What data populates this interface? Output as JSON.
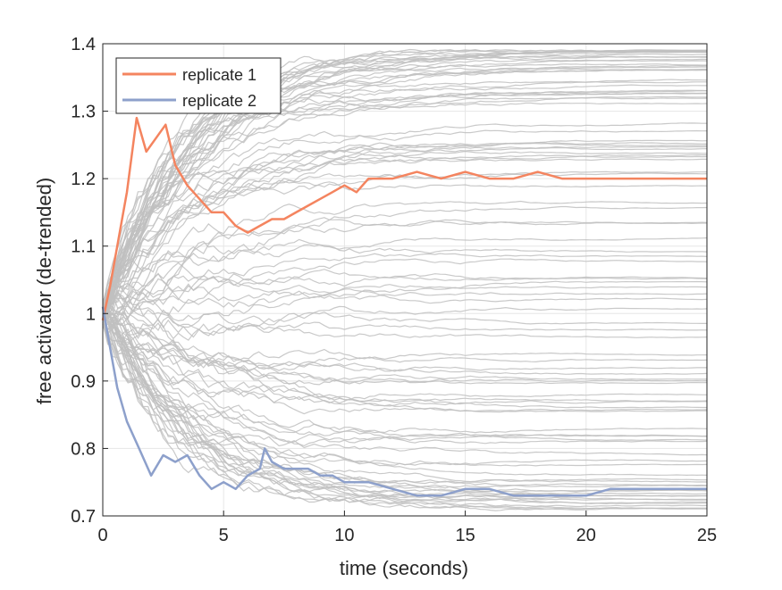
{
  "chart_data": {
    "type": "line",
    "title": "",
    "xlabel": "time (seconds)",
    "ylabel": "free activator (de-trended)",
    "xlim": [
      0,
      25
    ],
    "ylim": [
      0.7,
      1.4
    ],
    "xticks": [
      "0",
      "5",
      "10",
      "15",
      "20",
      "25"
    ],
    "yticks": [
      "0.7",
      "0.8",
      "0.9",
      "1",
      "1.1",
      "1.2",
      "1.3",
      "1.4"
    ],
    "grid": true,
    "legend_position": "top-left",
    "background_traces": {
      "color": "#bfbfbf",
      "count": 100,
      "start_value": 1.0,
      "final_range": [
        0.71,
        1.39
      ],
      "description_values": [
        1.38,
        1.31,
        1.28,
        1.24,
        1.18,
        1.11,
        1.06,
        1.03,
        1.0,
        0.97,
        0.93,
        0.89,
        0.86,
        0.83,
        0.8,
        0.72
      ]
    },
    "series": [
      {
        "name": "replicate 1",
        "color": "#f4845f",
        "x": [
          0,
          0.3,
          0.6,
          1.0,
          1.4,
          1.8,
          2.2,
          2.6,
          3.0,
          3.5,
          4.0,
          4.5,
          5.0,
          5.5,
          6.0,
          6.5,
          7.0,
          7.5,
          8.0,
          8.5,
          9.0,
          9.5,
          10.0,
          10.5,
          11.0,
          12.0,
          13.0,
          14.0,
          15.0,
          16.0,
          17.0,
          18.0,
          19.0,
          20.0,
          21.0,
          22.0,
          23.0,
          24.0,
          25.0
        ],
        "y": [
          0.99,
          1.04,
          1.1,
          1.18,
          1.29,
          1.24,
          1.26,
          1.28,
          1.22,
          1.19,
          1.17,
          1.15,
          1.15,
          1.13,
          1.12,
          1.13,
          1.14,
          1.14,
          1.15,
          1.16,
          1.17,
          1.18,
          1.19,
          1.18,
          1.2,
          1.2,
          1.21,
          1.2,
          1.21,
          1.2,
          1.2,
          1.21,
          1.2,
          1.2,
          1.2,
          1.2,
          1.2,
          1.2,
          1.2
        ]
      },
      {
        "name": "replicate 2",
        "color": "#8da0cb",
        "x": [
          0,
          0.3,
          0.6,
          1.0,
          1.5,
          2.0,
          2.5,
          3.0,
          3.5,
          4.0,
          4.5,
          5.0,
          5.5,
          6.0,
          6.5,
          6.7,
          7.0,
          7.5,
          8.0,
          8.5,
          9.0,
          9.5,
          10.0,
          11.0,
          12.0,
          13.0,
          14.0,
          15.0,
          16.0,
          17.0,
          18.0,
          19.0,
          20.0,
          21.0,
          22.0,
          23.0,
          24.0,
          25.0
        ],
        "y": [
          1.01,
          0.95,
          0.89,
          0.84,
          0.8,
          0.76,
          0.79,
          0.78,
          0.79,
          0.76,
          0.74,
          0.75,
          0.74,
          0.76,
          0.77,
          0.8,
          0.78,
          0.77,
          0.77,
          0.77,
          0.76,
          0.76,
          0.75,
          0.75,
          0.74,
          0.73,
          0.73,
          0.74,
          0.74,
          0.73,
          0.73,
          0.73,
          0.73,
          0.74,
          0.74,
          0.74,
          0.74,
          0.74
        ]
      }
    ]
  }
}
